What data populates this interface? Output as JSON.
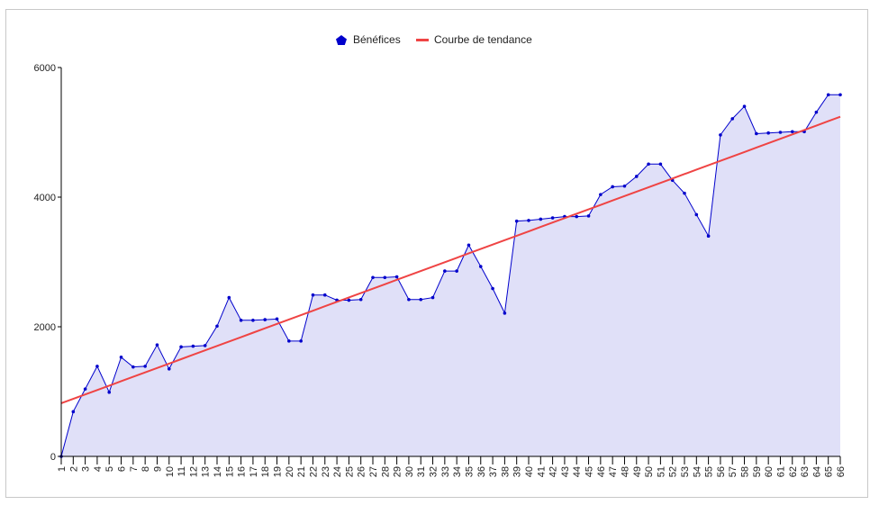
{
  "chart_data": {
    "type": "area",
    "categories": [
      "1",
      "2",
      "3",
      "4",
      "5",
      "6",
      "7",
      "8",
      "9",
      "10",
      "11",
      "12",
      "13",
      "14",
      "15",
      "16",
      "17",
      "18",
      "19",
      "20",
      "21",
      "22",
      "23",
      "24",
      "25",
      "26",
      "27",
      "28",
      "29",
      "30",
      "31",
      "32",
      "33",
      "34",
      "35",
      "36",
      "37",
      "38",
      "39",
      "40",
      "41",
      "42",
      "43",
      "44",
      "45",
      "46",
      "47",
      "48",
      "49",
      "50",
      "51",
      "52",
      "53",
      "54",
      "55",
      "56",
      "57",
      "58",
      "59",
      "60",
      "61",
      "62",
      "63",
      "64",
      "65",
      "66"
    ],
    "series": [
      {
        "name": "Bénéfices",
        "type": "area",
        "color": "#0000cc",
        "fill": "#e0e0f8",
        "values": [
          0,
          690,
          1040,
          1390,
          990,
          1530,
          1380,
          1390,
          1720,
          1350,
          1690,
          1700,
          1710,
          2010,
          2450,
          2100,
          2100,
          2110,
          2120,
          1780,
          1780,
          2490,
          2490,
          2410,
          2410,
          2420,
          2760,
          2760,
          2770,
          2420,
          2420,
          2450,
          2860,
          2860,
          3260,
          2930,
          2590,
          2210,
          3630,
          3640,
          3660,
          3680,
          3700,
          3700,
          3710,
          4040,
          4160,
          4170,
          4320,
          4510,
          4510,
          4260,
          4060,
          3730,
          3400,
          4960,
          5210,
          5400,
          4980,
          4990,
          5000,
          5010,
          5010,
          5310,
          5580,
          5580
        ]
      },
      {
        "name": "Courbe de tendance",
        "type": "line",
        "color": "#ef4444",
        "values": [
          820,
          888,
          956,
          1024,
          1092,
          1160,
          1228,
          1296,
          1364,
          1432,
          1500,
          1568,
          1636,
          1704,
          1772,
          1840,
          1908,
          1976,
          2044,
          2112,
          2180,
          2248,
          2316,
          2384,
          2452,
          2520,
          2588,
          2656,
          2724,
          2792,
          2860,
          2928,
          2996,
          3064,
          3132,
          3200,
          3268,
          3336,
          3404,
          3472,
          3540,
          3608,
          3676,
          3744,
          3812,
          3880,
          3948,
          4016,
          4084,
          4152,
          4220,
          4288,
          4356,
          4424,
          4492,
          4560,
          4628,
          4696,
          4764,
          4832,
          4900,
          4968,
          5036,
          5104,
          5172,
          5240
        ]
      }
    ],
    "y_ticks": [
      "0",
      "2000",
      "4000",
      "6000"
    ],
    "ylim": [
      0,
      6000
    ],
    "grid": false,
    "legend_position": "top-center"
  }
}
